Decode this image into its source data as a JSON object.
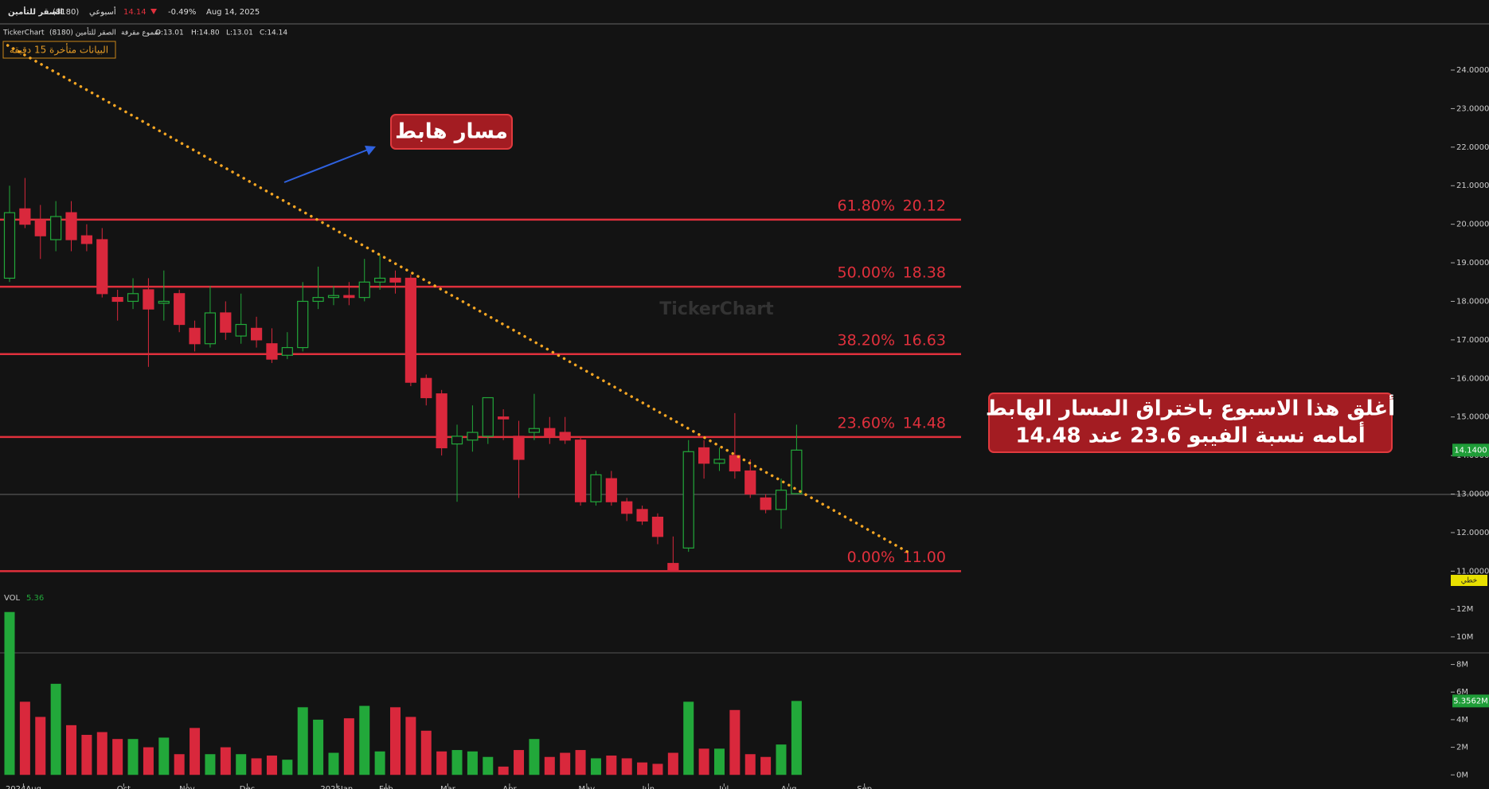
{
  "header": {
    "name": "الصقر للتأمين",
    "code": "(8180)",
    "period": "أسبوعي",
    "price": 14.14,
    "change": {
      "value": -0.49,
      "label": "-0.49%"
    },
    "date": "Aug 14, 2025"
  },
  "legend_line": {
    "source": "TickerChart",
    "symbol": "الصقر للتأمين (8180)",
    "style": "شموع مقرفة",
    "ohlc": [
      "O:13.01",
      "H:14.80",
      "L:13.01",
      "C:14.14"
    ]
  },
  "delay_notice": "البيانات متأخرة 15 دقيقة",
  "watermark": "TickerChart",
  "annotations": {
    "trend_label": "مسار هابط",
    "note_lines": [
      "أغلق هذا الاسبوع باختراق المسار الهابط",
      "أمامه نسبة الفيبو 23.6 عند 14.48"
    ]
  },
  "line_style_badge": "خطي",
  "chart_data": [
    {
      "type": "candlestick",
      "up_color": "#22a83a",
      "down_color": "#d9283c",
      "grid": false,
      "open": [
        18.6,
        20.4,
        20.1,
        19.6,
        20.3,
        19.7,
        19.6,
        18.1,
        18.0,
        18.3,
        17.95,
        18.2,
        17.3,
        16.9,
        17.7,
        17.1,
        17.3,
        16.9,
        16.6,
        16.8,
        18.0,
        18.1,
        18.15,
        18.1,
        18.5,
        18.6,
        18.6,
        16.0,
        15.6,
        14.3,
        14.4,
        14.5,
        15.0,
        14.5,
        14.6,
        14.7,
        14.6,
        14.4,
        12.8,
        13.4,
        12.8,
        12.6,
        12.4,
        11.2,
        11.6,
        14.2,
        13.8,
        14.0,
        13.6,
        12.9,
        12.6,
        13.01
      ],
      "high": [
        21.0,
        21.2,
        20.5,
        20.6,
        20.6,
        20.0,
        19.9,
        18.3,
        18.6,
        18.6,
        18.8,
        18.3,
        17.5,
        18.4,
        18.0,
        18.2,
        17.6,
        17.3,
        17.2,
        18.5,
        18.9,
        18.4,
        18.5,
        19.1,
        19.2,
        18.8,
        18.7,
        16.1,
        15.7,
        14.8,
        15.3,
        15.5,
        15.2,
        14.9,
        15.6,
        15.0,
        15.0,
        14.5,
        13.6,
        13.6,
        12.9,
        12.7,
        12.5,
        11.9,
        14.4,
        14.4,
        14.2,
        15.1,
        13.9,
        13.0,
        13.4,
        14.8
      ],
      "low": [
        18.5,
        19.9,
        19.1,
        19.3,
        19.3,
        19.3,
        18.1,
        17.5,
        17.8,
        16.3,
        17.5,
        17.2,
        16.7,
        16.8,
        17.0,
        16.9,
        16.8,
        16.4,
        16.5,
        16.7,
        17.8,
        17.9,
        17.9,
        18.0,
        18.3,
        18.2,
        15.8,
        15.3,
        14.0,
        12.8,
        14.1,
        14.3,
        14.4,
        12.9,
        14.4,
        14.3,
        14.3,
        12.7,
        12.7,
        12.7,
        12.3,
        12.2,
        11.7,
        11.0,
        11.5,
        13.4,
        13.6,
        13.4,
        12.9,
        12.5,
        12.1,
        13.01
      ],
      "close": [
        20.3,
        20.0,
        19.7,
        20.2,
        19.6,
        19.5,
        18.2,
        18.0,
        18.2,
        17.8,
        18.0,
        17.4,
        16.9,
        17.7,
        17.2,
        17.4,
        17.0,
        16.5,
        16.8,
        18.0,
        18.1,
        18.15,
        18.1,
        18.5,
        18.6,
        18.5,
        15.9,
        15.5,
        14.2,
        14.5,
        14.6,
        15.5,
        14.95,
        13.9,
        14.7,
        14.5,
        14.4,
        12.8,
        13.5,
        12.8,
        12.5,
        12.3,
        11.9,
        11.0,
        14.1,
        13.8,
        13.9,
        13.6,
        13.0,
        12.6,
        13.1,
        14.14
      ],
      "ylim": [
        10.45,
        24.95
      ],
      "yticks": [
        {
          "value": 24,
          "label": "24.0000"
        },
        {
          "value": 23,
          "label": "23.0000"
        },
        {
          "value": 22,
          "label": "22.0000"
        },
        {
          "value": 21,
          "label": "21.0000"
        },
        {
          "value": 20,
          "label": "20.0000"
        },
        {
          "value": 19,
          "label": "19.0000"
        },
        {
          "value": 18,
          "label": "18.0000"
        },
        {
          "value": 17,
          "label": "17.0000"
        },
        {
          "value": 16,
          "label": "16.0000"
        },
        {
          "value": 15,
          "label": "15.0000"
        },
        {
          "value": 14,
          "label": "14.0000"
        },
        {
          "value": 13,
          "label": "13.0000"
        },
        {
          "value": 12,
          "label": "12.0000"
        },
        {
          "value": 11,
          "label": "11.0000"
        }
      ],
      "xticks": [
        {
          "value": 0.9,
          "label": "2024Aug"
        },
        {
          "value": 7.4,
          "label": "Oct"
        },
        {
          "value": 11.5,
          "label": "Nov"
        },
        {
          "value": 15.4,
          "label": "Dec"
        },
        {
          "value": 21.2,
          "label": "2025Jan"
        },
        {
          "value": 24.4,
          "label": "Feb"
        },
        {
          "value": 28.4,
          "label": "Mar"
        },
        {
          "value": 32.4,
          "label": "Apr"
        },
        {
          "value": 37.4,
          "label": "May"
        },
        {
          "value": 41.4,
          "label": "Jun"
        },
        {
          "value": 46.3,
          "label": "Jul"
        },
        {
          "value": 50.5,
          "label": "Aug"
        },
        {
          "value": 55.4,
          "label": "Sep"
        }
      ],
      "fib_levels": [
        {
          "ratio": {
            "value": 61.8,
            "label": "61.80%"
          },
          "price": 20.12
        },
        {
          "ratio": {
            "value": 50,
            "label": "50.00%"
          },
          "price": 18.38
        },
        {
          "ratio": {
            "value": 38.2,
            "label": "38.20%"
          },
          "price": 16.63
        },
        {
          "ratio": {
            "value": 23.6,
            "label": "23.60%"
          },
          "price": 14.48
        },
        {
          "ratio": {
            "value": 0,
            "label": "0.00%"
          },
          "price": {
            "value": 11,
            "label": "11.00"
          }
        }
      ],
      "fib_color": "#e0303c",
      "trendline": {
        "color": "#f5a623",
        "start": [
          -0.12,
          24.64
        ],
        "end": [
          58.5,
          11.43
        ]
      },
      "last_price": {
        "value": 14.14,
        "label": "14.1400"
      }
    },
    {
      "type": "bar",
      "title": "VOL",
      "current": {
        "value": 5360000,
        "label": "5.36"
      },
      "values": [
        11800000,
        5300000,
        4200000,
        6600000,
        3600000,
        2900000,
        3100000,
        2600000,
        2600000,
        2000000,
        2700000,
        1500000,
        3400000,
        1500000,
        2000000,
        1500000,
        1200000,
        1400000,
        1100000,
        4900000,
        4000000,
        1600000,
        4100000,
        5000000,
        1700000,
        4900000,
        4200000,
        3200000,
        1700000,
        1800000,
        1700000,
        1300000,
        600000,
        1800000,
        2600000,
        1300000,
        1600000,
        1800000,
        1200000,
        1400000,
        1200000,
        900000,
        800000,
        1600000,
        5300000,
        1900000,
        1900000,
        4700000,
        1500000,
        1300000,
        2200000,
        5356200
      ],
      "ylim": [
        -620000,
        13110000
      ],
      "yticks": [
        {
          "value": 12000000,
          "label": "12M"
        },
        {
          "value": 10000000,
          "label": "10M"
        },
        {
          "value": 8000000,
          "label": "8M"
        },
        {
          "value": 6000000,
          "label": "6M"
        },
        {
          "value": 4000000,
          "label": "4M"
        },
        {
          "value": 2000000,
          "label": "2M"
        },
        {
          "value": 0,
          "label": "0M"
        }
      ],
      "last_value": {
        "value": 5356200,
        "label": "5.3562M"
      }
    }
  ]
}
